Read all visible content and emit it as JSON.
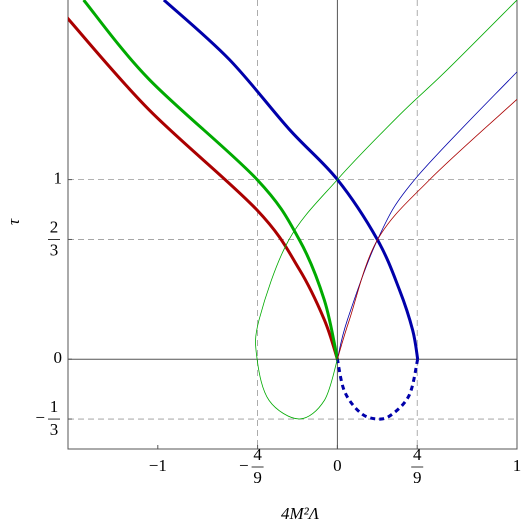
{
  "chart_data": {
    "type": "line",
    "x_label": "4M²Λ",
    "y_label": "τ",
    "xlim": [
      -1.5,
      1
    ],
    "ylim": [
      -0.5,
      2
    ],
    "xticks": [
      {
        "value": -1,
        "label": "−1"
      },
      {
        "value": -0.4444,
        "label": {
          "sign": "−",
          "numerator": "4",
          "denominator": "9"
        }
      },
      0,
      {
        "value": 0.4444,
        "label": {
          "numerator": "4",
          "denominator": "9"
        }
      },
      1
    ],
    "yticks": [
      {
        "value": -0.3333,
        "label": {
          "sign": "−",
          "numerator": "1",
          "denominator": "3"
        }
      },
      0,
      {
        "value": 0.6667,
        "label": {
          "numerator": "2",
          "denominator": "3"
        }
      },
      1
    ],
    "xgrid": [
      -0.4444,
      0.4444
    ],
    "ygrid": [
      -0.3333,
      0.6667,
      1
    ],
    "series": [
      {
        "color": "#aa0000",
        "width": 3,
        "dashed": false,
        "x": [
          -1.508,
          -1.05,
          -0.447,
          -0.212,
          -0.073,
          0
        ],
        "y": [
          1.905,
          1.39,
          0.83,
          0.5,
          0.22,
          0
        ]
      },
      {
        "color": "#00aa00",
        "width": 3,
        "dashed": false,
        "x": [
          -1.413,
          -1.05,
          -0.447,
          -0.212,
          -0.073,
          0
        ],
        "y": [
          2.0,
          1.56,
          1.0,
          0.665,
          0.33,
          0
        ]
      },
      {
        "color": "#0000aa",
        "width": 3,
        "dashed": false,
        "x": [
          -0.966,
          -0.603,
          -0.268,
          0,
          0.223,
          0.346,
          0.419,
          0.447
        ],
        "y": [
          2.0,
          1.67,
          1.28,
          1,
          0.665,
          0.385,
          0.162,
          0
        ]
      },
      {
        "color": "#0000aa",
        "width": 3,
        "dashed": true,
        "x": [
          0.447,
          0.4,
          0.3,
          0.222,
          0.13,
          0.04,
          0
        ],
        "y": [
          0,
          -0.2,
          -0.31,
          -0.333,
          -0.3,
          -0.18,
          0
        ]
      },
      {
        "color": "#00aa00",
        "width": 0.8,
        "dashed": false,
        "x": [
          1,
          0.6,
          0.346,
          0,
          -0.27,
          -0.436,
          -0.447,
          -0.38,
          -0.212,
          -0.073,
          0
        ],
        "y": [
          2,
          1.6,
          1.36,
          1,
          0.665,
          0.22,
          0,
          -0.23,
          -0.333,
          -0.23,
          0
        ]
      },
      {
        "color": "#0000aa",
        "width": 0.8,
        "dashed": false,
        "x": [
          0,
          0.056,
          0.223,
          0.43,
          1
        ],
        "y": [
          0,
          0.22,
          0.665,
          1,
          1.6
        ]
      },
      {
        "color": "#aa0000",
        "width": 0.8,
        "dashed": false,
        "x": [
          0,
          0.067,
          0.223,
          0.514,
          1
        ],
        "y": [
          0,
          0.22,
          0.665,
          1,
          1.447
        ]
      }
    ]
  }
}
